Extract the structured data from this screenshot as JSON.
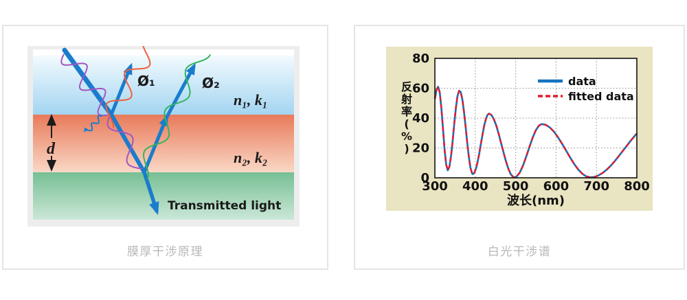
{
  "left_card": {
    "caption": "膜厚干涉原理",
    "diagram": {
      "labels": {
        "phi1": "Ø₁",
        "phi2": "Ø₂",
        "n1k1": "n₁, k₁",
        "n2k2": "n₂, k₂",
        "thickness": "d",
        "transmitted": "Transmitted light"
      },
      "colors": {
        "ambient_top": "#f2fafe",
        "ambient_bottom": "#a3d5f1",
        "film_top": "#e87a5a",
        "film_bottom": "#fad8c6",
        "substrate_top": "#76bf94",
        "substrate_bottom": "#cbe7d7",
        "ray": "#1a7ccd",
        "wave_incident": "#a455c0",
        "wave_phi1": "#ef5f3c",
        "wave_phi2": "#34b45c",
        "frame": "#ededed",
        "thickness_arrow": "#1c1c1c"
      }
    }
  },
  "right_card": {
    "caption": "白光干涉谱"
  },
  "chart_data": {
    "type": "line",
    "title": "",
    "xlabel": "波长(nm)",
    "ylabel": "反射率(%)",
    "xlim": [
      300,
      800
    ],
    "ylim": [
      0,
      80
    ],
    "xticks": [
      300,
      400,
      500,
      600,
      700,
      800
    ],
    "yticks": [
      0,
      20,
      40,
      60,
      80
    ],
    "grid": true,
    "grid_style": "dotted",
    "legend_position": "upper-center-inside",
    "panel_background": "#e9e4c1",
    "axis_color": "#111111",
    "x": [
      300,
      304,
      308,
      312,
      316,
      320,
      324,
      328,
      332,
      336,
      340,
      344,
      348,
      352,
      356,
      360,
      364,
      368,
      372,
      376,
      380,
      384,
      388,
      392,
      394,
      398,
      402,
      406,
      410,
      414,
      418,
      422,
      426,
      430,
      434,
      440,
      446,
      452,
      458,
      464,
      470,
      476,
      482,
      488,
      494,
      497,
      502,
      510,
      518,
      526,
      534,
      542,
      550,
      558,
      565,
      575,
      585,
      595,
      605,
      615,
      625,
      635,
      645,
      655,
      665,
      675,
      685,
      695,
      705,
      715,
      725,
      735,
      745,
      755,
      765,
      775,
      785,
      795,
      800
    ],
    "series": [
      {
        "name": "data",
        "color": "#1472bf",
        "style": "solid",
        "width": 2.7,
        "y": [
          52.8,
          58.9,
          61,
          57.2,
          47,
          33,
          19,
          8.8,
          5,
          7.5,
          14.4,
          24.6,
          36.1,
          46.8,
          54.7,
          58.3,
          57.4,
          52.5,
          44.5,
          34.5,
          23.9,
          14.2,
          6.9,
          3,
          2.5,
          3.5,
          6.4,
          10.8,
          16.5,
          22.8,
          29,
          34.7,
          39.1,
          42,
          43,
          42.1,
          39.3,
          35,
          29.4,
          23.2,
          16.9,
          11,
          6,
          2.4,
          0.5,
          0.3,
          0.8,
          3.4,
          8.1,
          14.1,
          20.6,
          26.8,
          31.9,
          35.1,
          36,
          35.4,
          33.6,
          30.8,
          27.1,
          22.8,
          18.2,
          13.5,
          9.2,
          5.5,
          2.7,
          0.9,
          0.3,
          0.6,
          1.6,
          3.2,
          5.4,
          8,
          11.1,
          14.4,
          17.9,
          21.4,
          24.9,
          28.2,
          29.7
        ]
      },
      {
        "name": "fitted data",
        "color": "#e11c2c",
        "style": "dashed",
        "width": 2.3,
        "dash": "7 4",
        "y": [
          52.8,
          58.9,
          61,
          57.2,
          47,
          33,
          19,
          8.8,
          5,
          7.5,
          14.4,
          24.6,
          36.1,
          46.8,
          54.7,
          58.3,
          57.4,
          52.5,
          44.5,
          34.5,
          23.9,
          14.2,
          6.9,
          3,
          2.5,
          3.5,
          6.4,
          10.8,
          16.5,
          22.8,
          29,
          34.7,
          39.1,
          42,
          43,
          42.1,
          39.3,
          35,
          29.4,
          23.2,
          16.9,
          11,
          6,
          2.4,
          0.5,
          0.3,
          0.8,
          3.4,
          8.1,
          14.1,
          20.6,
          26.8,
          31.9,
          35.1,
          36,
          35.4,
          33.6,
          30.8,
          27.1,
          22.8,
          18.2,
          13.5,
          9.2,
          5.5,
          2.7,
          0.9,
          0.3,
          0.6,
          1.6,
          3.2,
          5.4,
          8,
          11.1,
          14.4,
          17.9,
          21.4,
          24.9,
          28.2,
          29.7
        ]
      }
    ]
  }
}
